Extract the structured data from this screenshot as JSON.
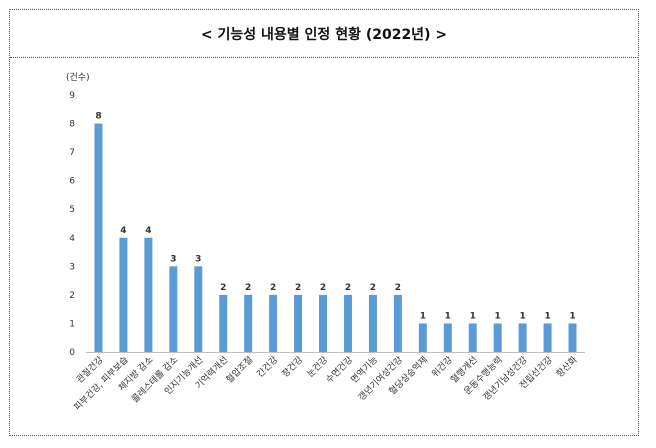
{
  "chart_data": {
    "type": "bar",
    "title": "< 기능성 내용별 인정 현황 (2022년) >",
    "ylabel": "(건수)",
    "ylim": [
      0,
      9
    ],
    "yticks": [
      0,
      1,
      2,
      3,
      4,
      5,
      6,
      7,
      8,
      9
    ],
    "grid": false,
    "legend": "none",
    "bar_color": "#5B9BD5",
    "categories": [
      "관절건강",
      "피부건강, 피부보습",
      "체지방 감소",
      "콜레스테롤 감소",
      "인지기능개선",
      "기억력개선",
      "혈압조절",
      "간건강",
      "장건강",
      "눈건강",
      "수면건강",
      "면역기능",
      "갱년기여성건강",
      "혈당상승억제",
      "위건강",
      "혈행개선",
      "운동수행능력",
      "갱년기남성건강",
      "전립선건강",
      "항산화"
    ],
    "values": [
      8,
      4,
      4,
      3,
      3,
      2,
      2,
      2,
      2,
      2,
      2,
      2,
      2,
      1,
      1,
      1,
      1,
      1,
      1,
      1
    ]
  }
}
